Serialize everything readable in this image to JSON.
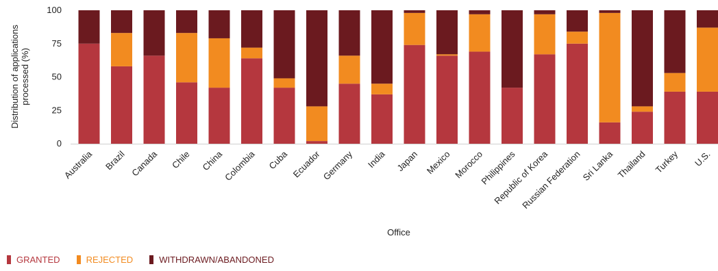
{
  "chart_data": {
    "type": "bar",
    "stacked": true,
    "xlabel": "Office",
    "ylabel": "Distribution of applications processed (%)",
    "ylim": [
      0,
      100
    ],
    "yticks": [
      0,
      25,
      50,
      75,
      100
    ],
    "legend_position": "bottom-left",
    "categories": [
      "Australia",
      "Brazil",
      "Canada",
      "Chile",
      "China",
      "Colombia",
      "Cuba",
      "Ecuador",
      "Germany",
      "India",
      "Japan",
      "Mexico",
      "Morocco",
      "Philippines",
      "Republic of Korea",
      "Russian Federation",
      "Sri Lanka",
      "Thailand",
      "Turkey",
      "U.S."
    ],
    "series": [
      {
        "name": "GRANTED",
        "color": "#b5373e",
        "values": [
          75,
          58,
          66,
          46,
          42,
          64,
          42,
          2,
          45,
          37,
          74,
          66,
          69,
          42,
          67,
          75,
          16,
          24,
          39,
          39
        ]
      },
      {
        "name": "REJECTED",
        "color": "#f28b20",
        "values": [
          0,
          25,
          0,
          37,
          37,
          8,
          7,
          26,
          21,
          8,
          24,
          1,
          28,
          0,
          30,
          9,
          82,
          4,
          14,
          48
        ]
      },
      {
        "name": "WITHDRAWN/ABANDONED",
        "color": "#6b1a1f",
        "values": [
          25,
          17,
          34,
          17,
          21,
          28,
          51,
          72,
          34,
          55,
          2,
          33,
          3,
          58,
          3,
          16,
          2,
          72,
          47,
          13
        ]
      }
    ]
  }
}
